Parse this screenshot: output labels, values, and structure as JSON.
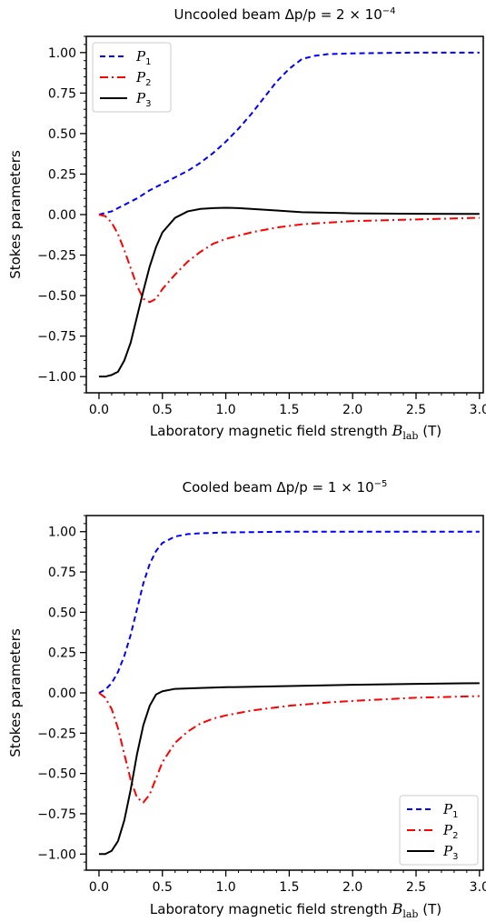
{
  "chart_data": [
    {
      "type": "line",
      "title_text": "Uncooled beam Δp/p = 2 × 10",
      "title_exp": "−4",
      "xlabel_text": "Laboratory magnetic field strength ",
      "xlabel_sym": "B",
      "xlabel_sub": "lab",
      "xlabel_unit": " (T)",
      "ylabel": "Stokes parameters",
      "xlim": [
        -0.1,
        3.03
      ],
      "ylim": [
        -1.1,
        1.1
      ],
      "xticks": [
        0.0,
        0.5,
        1.0,
        1.5,
        2.0,
        2.5,
        3.0
      ],
      "xtick_labels": [
        "0.0",
        "0.5",
        "1.0",
        "1.5",
        "2.0",
        "2.5",
        "3.0"
      ],
      "yticks": [
        1.0,
        0.75,
        0.5,
        0.25,
        0.0,
        -0.25,
        -0.5,
        -0.75,
        -1.0
      ],
      "ytick_labels": [
        "1.00",
        "0.75",
        "0.50",
        "0.25",
        "0.00",
        "−0.25",
        "−0.50",
        "−0.75",
        "−1.00"
      ],
      "legend_position": "top-left",
      "series": [
        {
          "name": "P",
          "sub": "1",
          "color": "#0000ff",
          "dash": "dashed",
          "points": [
            [
              0.0,
              0.0
            ],
            [
              0.1,
              0.02
            ],
            [
              0.2,
              0.06
            ],
            [
              0.3,
              0.1
            ],
            [
              0.4,
              0.15
            ],
            [
              0.5,
              0.19
            ],
            [
              0.6,
              0.23
            ],
            [
              0.7,
              0.27
            ],
            [
              0.8,
              0.32
            ],
            [
              0.9,
              0.38
            ],
            [
              1.0,
              0.45
            ],
            [
              1.1,
              0.53
            ],
            [
              1.2,
              0.62
            ],
            [
              1.3,
              0.72
            ],
            [
              1.4,
              0.82
            ],
            [
              1.5,
              0.9
            ],
            [
              1.6,
              0.96
            ],
            [
              1.7,
              0.98
            ],
            [
              1.8,
              0.99
            ],
            [
              2.0,
              0.995
            ],
            [
              2.5,
              1.0
            ],
            [
              3.0,
              1.0
            ]
          ]
        },
        {
          "name": "P",
          "sub": "2",
          "color": "#ff0000",
          "dash": "dashdot",
          "points": [
            [
              0.0,
              0.0
            ],
            [
              0.05,
              -0.01
            ],
            [
              0.1,
              -0.05
            ],
            [
              0.15,
              -0.12
            ],
            [
              0.2,
              -0.22
            ],
            [
              0.25,
              -0.33
            ],
            [
              0.3,
              -0.44
            ],
            [
              0.35,
              -0.52
            ],
            [
              0.4,
              -0.54
            ],
            [
              0.45,
              -0.52
            ],
            [
              0.5,
              -0.46
            ],
            [
              0.6,
              -0.37
            ],
            [
              0.7,
              -0.29
            ],
            [
              0.8,
              -0.23
            ],
            [
              0.9,
              -0.18
            ],
            [
              1.0,
              -0.15
            ],
            [
              1.2,
              -0.11
            ],
            [
              1.4,
              -0.08
            ],
            [
              1.6,
              -0.06
            ],
            [
              1.8,
              -0.05
            ],
            [
              2.0,
              -0.04
            ],
            [
              2.5,
              -0.03
            ],
            [
              3.0,
              -0.02
            ]
          ]
        },
        {
          "name": "P",
          "sub": "3",
          "color": "#000000",
          "dash": "solid",
          "points": [
            [
              0.0,
              -1.0
            ],
            [
              0.05,
              -1.0
            ],
            [
              0.1,
              -0.99
            ],
            [
              0.15,
              -0.97
            ],
            [
              0.2,
              -0.9
            ],
            [
              0.25,
              -0.79
            ],
            [
              0.3,
              -0.63
            ],
            [
              0.35,
              -0.47
            ],
            [
              0.4,
              -0.32
            ],
            [
              0.45,
              -0.2
            ],
            [
              0.5,
              -0.11
            ],
            [
              0.6,
              -0.02
            ],
            [
              0.7,
              0.02
            ],
            [
              0.8,
              0.035
            ],
            [
              0.9,
              0.04
            ],
            [
              1.0,
              0.042
            ],
            [
              1.1,
              0.04
            ],
            [
              1.2,
              0.035
            ],
            [
              1.4,
              0.025
            ],
            [
              1.6,
              0.015
            ],
            [
              2.0,
              0.008
            ],
            [
              2.5,
              0.005
            ],
            [
              3.0,
              0.004
            ]
          ]
        }
      ]
    },
    {
      "type": "line",
      "title_text": "Cooled beam Δp/p = 1 × 10",
      "title_exp": "−5",
      "xlabel_text": "Laboratory magnetic field strength ",
      "xlabel_sym": "B",
      "xlabel_sub": "lab",
      "xlabel_unit": " (T)",
      "ylabel": "Stokes parameters",
      "xlim": [
        -0.1,
        3.03
      ],
      "ylim": [
        -1.1,
        1.1
      ],
      "xticks": [
        0.0,
        0.5,
        1.0,
        1.5,
        2.0,
        2.5,
        3.0
      ],
      "xtick_labels": [
        "0.0",
        "0.5",
        "1.0",
        "1.5",
        "2.0",
        "2.5",
        "3.0"
      ],
      "yticks": [
        1.0,
        0.75,
        0.5,
        0.25,
        0.0,
        -0.25,
        -0.5,
        -0.75,
        -1.0
      ],
      "ytick_labels": [
        "1.00",
        "0.75",
        "0.50",
        "0.25",
        "0.00",
        "−0.25",
        "−0.50",
        "−0.75",
        "−1.00"
      ],
      "legend_position": "bottom-right",
      "series": [
        {
          "name": "P",
          "sub": "1",
          "color": "#0000ff",
          "dash": "dashed",
          "points": [
            [
              0.0,
              0.0
            ],
            [
              0.05,
              0.02
            ],
            [
              0.1,
              0.06
            ],
            [
              0.15,
              0.13
            ],
            [
              0.2,
              0.23
            ],
            [
              0.25,
              0.36
            ],
            [
              0.3,
              0.52
            ],
            [
              0.35,
              0.68
            ],
            [
              0.4,
              0.8
            ],
            [
              0.45,
              0.88
            ],
            [
              0.5,
              0.93
            ],
            [
              0.6,
              0.97
            ],
            [
              0.7,
              0.985
            ],
            [
              0.8,
              0.99
            ],
            [
              1.0,
              0.995
            ],
            [
              1.5,
              1.0
            ],
            [
              2.0,
              1.0
            ],
            [
              3.0,
              1.0
            ]
          ]
        },
        {
          "name": "P",
          "sub": "2",
          "color": "#ff0000",
          "dash": "dashdot",
          "points": [
            [
              0.0,
              0.0
            ],
            [
              0.05,
              -0.03
            ],
            [
              0.1,
              -0.1
            ],
            [
              0.15,
              -0.22
            ],
            [
              0.2,
              -0.38
            ],
            [
              0.25,
              -0.54
            ],
            [
              0.3,
              -0.65
            ],
            [
              0.35,
              -0.68
            ],
            [
              0.4,
              -0.63
            ],
            [
              0.45,
              -0.53
            ],
            [
              0.5,
              -0.43
            ],
            [
              0.6,
              -0.31
            ],
            [
              0.7,
              -0.24
            ],
            [
              0.8,
              -0.19
            ],
            [
              0.9,
              -0.16
            ],
            [
              1.0,
              -0.14
            ],
            [
              1.2,
              -0.11
            ],
            [
              1.5,
              -0.08
            ],
            [
              1.8,
              -0.06
            ],
            [
              2.0,
              -0.05
            ],
            [
              2.5,
              -0.03
            ],
            [
              3.0,
              -0.02
            ]
          ]
        },
        {
          "name": "P",
          "sub": "3",
          "color": "#000000",
          "dash": "solid",
          "points": [
            [
              0.0,
              -1.0
            ],
            [
              0.05,
              -1.0
            ],
            [
              0.1,
              -0.98
            ],
            [
              0.15,
              -0.92
            ],
            [
              0.2,
              -0.79
            ],
            [
              0.25,
              -0.6
            ],
            [
              0.3,
              -0.38
            ],
            [
              0.35,
              -0.2
            ],
            [
              0.4,
              -0.08
            ],
            [
              0.45,
              -0.01
            ],
            [
              0.5,
              0.01
            ],
            [
              0.6,
              0.025
            ],
            [
              0.8,
              0.03
            ],
            [
              1.0,
              0.035
            ],
            [
              1.5,
              0.042
            ],
            [
              2.0,
              0.05
            ],
            [
              2.5,
              0.056
            ],
            [
              3.0,
              0.06
            ]
          ]
        }
      ]
    }
  ]
}
